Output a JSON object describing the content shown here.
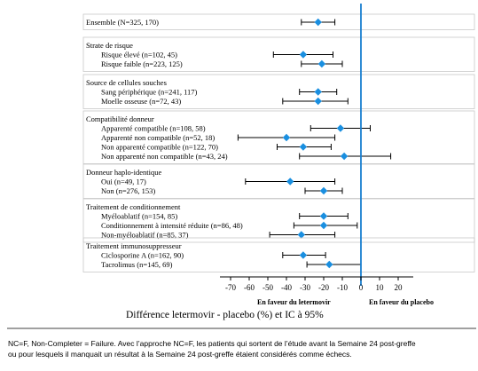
{
  "chart_data": {
    "type": "forest",
    "x_axis": {
      "label": "Différence letermovir - placebo (%) et IC à 95%",
      "ticks": [
        -70,
        -60,
        -50,
        -40,
        -30,
        -20,
        -10,
        0,
        10,
        20
      ],
      "range": [
        -75,
        25
      ],
      "left_caption": "En faveur du letermovir",
      "right_caption": "En faveur du placebo"
    },
    "marker_color": "#1a8fe0",
    "reference_line_color": "#1a7fd0",
    "groups": [
      {
        "heading": "",
        "rows": [
          {
            "label": "Ensemble (N=325, 170)",
            "estimate": -23,
            "lower": -32,
            "upper": -14
          }
        ]
      },
      {
        "heading": "Strate de risque",
        "rows": [
          {
            "label": "Risque élevé (n=102, 45)",
            "estimate": -31,
            "lower": -47,
            "upper": -15
          },
          {
            "label": "Risque faible (n=223, 125)",
            "estimate": -21,
            "lower": -32,
            "upper": -10
          }
        ]
      },
      {
        "heading": "Source de cellules souches",
        "rows": [
          {
            "label": "Sang périphérique (n=241, 117)",
            "estimate": -23,
            "lower": -33,
            "upper": -13
          },
          {
            "label": "Moelle osseuse (n=72, 43)",
            "estimate": -23,
            "lower": -42,
            "upper": -7
          }
        ]
      },
      {
        "heading": "Compatibilité donneur",
        "rows": [
          {
            "label": "Apparenté compatible (n=108, 58)",
            "estimate": -11,
            "lower": -27,
            "upper": 5
          },
          {
            "label": "Apparenté non compatible (n=52, 18)",
            "estimate": -40,
            "lower": -66,
            "upper": -14
          },
          {
            "label": "Non apparenté compatible (n=122, 70)",
            "estimate": -31,
            "lower": -45,
            "upper": -16
          },
          {
            "label": "Non apparenté non compatible (n=43, 24)",
            "estimate": -9,
            "lower": -33,
            "upper": 16
          }
        ]
      },
      {
        "heading": "Donneur haplo-identique",
        "rows": [
          {
            "label": "Oui (n=49, 17)",
            "estimate": -38,
            "lower": -62,
            "upper": -14
          },
          {
            "label": "Non (n=276, 153)",
            "estimate": -20,
            "lower": -30,
            "upper": -10
          }
        ]
      },
      {
        "heading": "Traitement de conditionnement",
        "rows": [
          {
            "label": "Myéloablatif (n=154, 85)",
            "estimate": -20,
            "lower": -33,
            "upper": -7
          },
          {
            "label": "Conditionnement à intensité réduite (n=86, 48)",
            "estimate": -20,
            "lower": -36,
            "upper": -2
          },
          {
            "label": "Non-myéloablatif (n=85, 37)",
            "estimate": -32,
            "lower": -49,
            "upper": -14
          }
        ]
      },
      {
        "heading": "Traitement immunosuppresseur",
        "rows": [
          {
            "label": "Ciclosporine A (n=162, 90)",
            "estimate": -31,
            "lower": -42,
            "upper": -19
          },
          {
            "label": "Tacrolimus (n=145, 69)",
            "estimate": -17,
            "lower": -29,
            "upper": 0
          }
        ]
      }
    ]
  },
  "footnote": {
    "line1": "NC=F, Non-Completer = Failure. Avec l’approche NC=F, les patients qui sortent de l’étude avant la Semaine 24 post-greffe",
    "line2": "ou pour lesquels il manquait un résultat à la Semaine 24 post-greffe étaient considérés comme échecs."
  }
}
